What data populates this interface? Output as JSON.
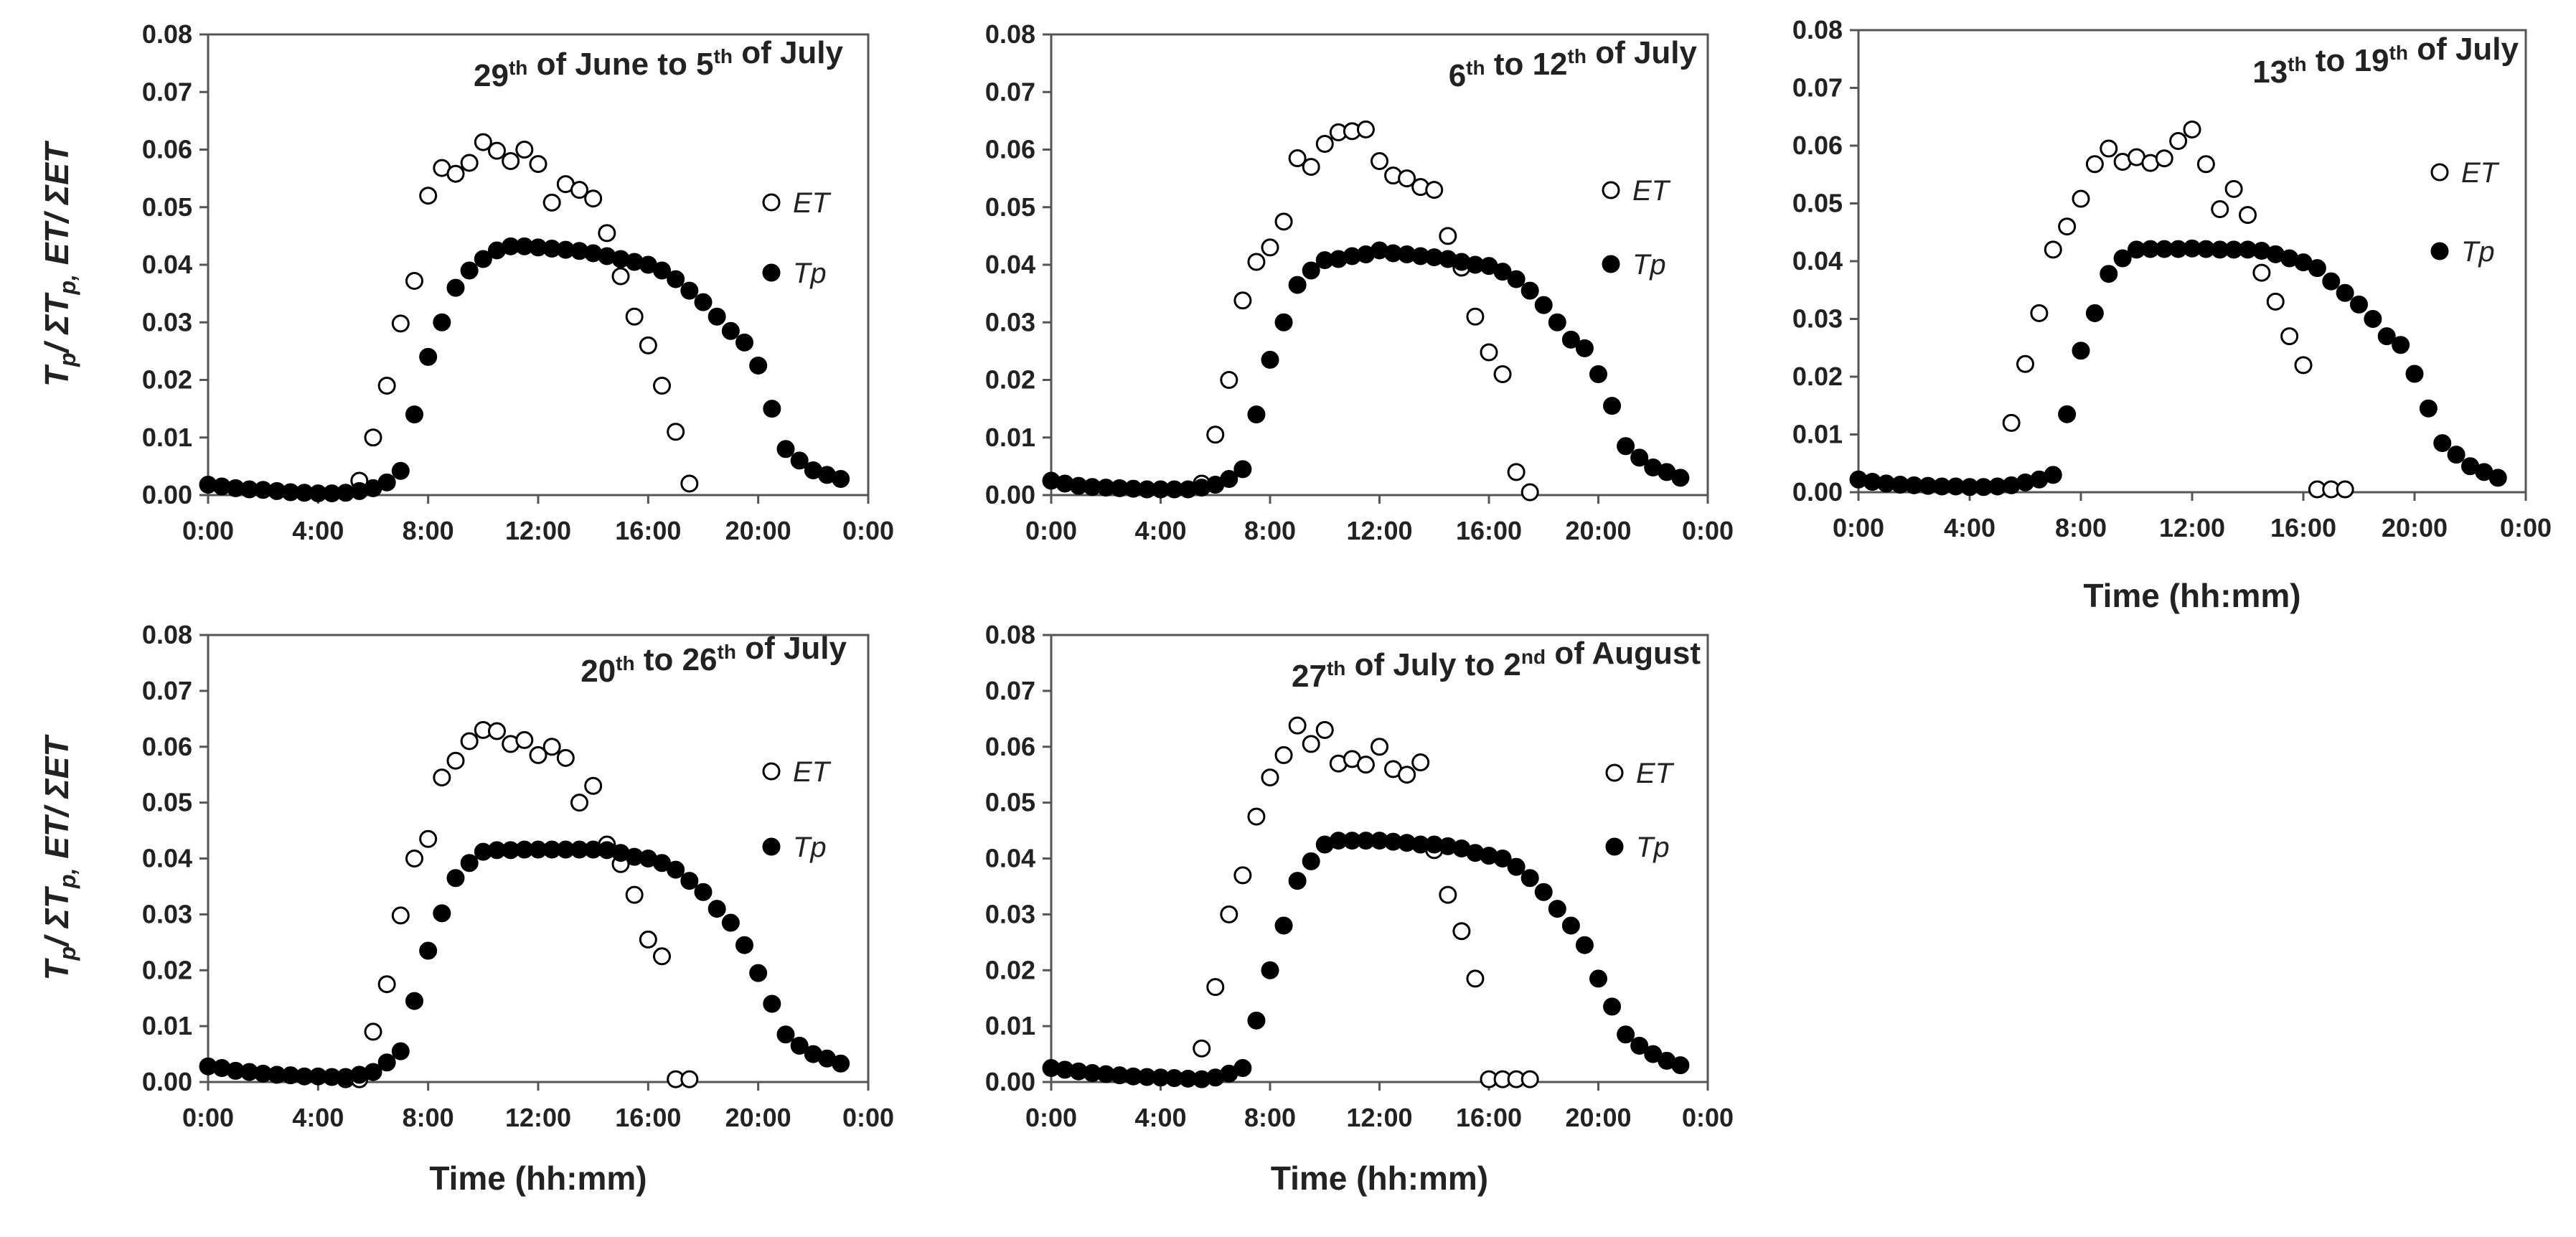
{
  "figure": {
    "ylabel_html": "T<tspan class='sub' dy='10' font-size='32'>p</tspan><tspan dy='-10'>/ ΣT</tspan><tspan dy='10' font-size='32'>p,</tspan><tspan dy='-10'> ET/ ΣET</tspan>",
    "ylabel_text": "Tp/ ΣTp, ET/ ΣET",
    "xlabel": "Time (hh:mm)",
    "xlabel_paren_variant": "Time (hh:mm)"
  },
  "chart_data": [
    {
      "type": "scatter",
      "title_parts": [
        [
          "29",
          "th"
        ],
        [
          " of June to 5",
          "th"
        ],
        [
          " of July",
          ""
        ]
      ],
      "title": "29th of June to 5th of July",
      "xlabel": "",
      "ylabel": "Tp/ ΣTp, ET/ ΣET",
      "xlim": [
        0,
        24
      ],
      "ylim": [
        0,
        0.08
      ],
      "xticks": [
        "0:00",
        "4:00",
        "8:00",
        "12:00",
        "16:00",
        "20:00",
        "0:00"
      ],
      "yticks": [
        "0.00",
        "0.01",
        "0.02",
        "0.03",
        "0.04",
        "0.05",
        "0.06",
        "0.07",
        "0.08"
      ],
      "legend": [
        "ET",
        "Tp"
      ],
      "series": [
        {
          "name": "ET",
          "marker": "open-circle",
          "x": [
            5.5,
            6.0,
            6.5,
            7.0,
            7.5,
            8.0,
            8.5,
            9.0,
            9.5,
            10.0,
            10.5,
            11.0,
            11.5,
            12.0,
            12.5,
            13.0,
            13.5,
            14.0,
            14.5,
            15.0,
            15.5,
            16.0,
            16.5,
            17.0,
            17.5
          ],
          "y": [
            0.0025,
            0.01,
            0.019,
            0.0298,
            0.0372,
            0.052,
            0.0568,
            0.0558,
            0.0577,
            0.0613,
            0.0598,
            0.058,
            0.06,
            0.0575,
            0.0508,
            0.054,
            0.053,
            0.0515,
            0.0455,
            0.038,
            0.031,
            0.026,
            0.019,
            0.011,
            0.002
          ]
        },
        {
          "name": "Tp",
          "marker": "filled-circle",
          "x": [
            0.0,
            0.5,
            1.0,
            1.5,
            2.0,
            2.5,
            3.0,
            3.5,
            4.0,
            4.5,
            5.0,
            5.5,
            6.0,
            6.5,
            7.0,
            7.5,
            8.0,
            8.5,
            9.0,
            9.5,
            10.0,
            10.5,
            11.0,
            11.5,
            12.0,
            12.5,
            13.0,
            13.5,
            14.0,
            14.5,
            15.0,
            15.5,
            16.0,
            16.5,
            17.0,
            17.5,
            18.0,
            18.5,
            19.0,
            19.5,
            20.0,
            20.5,
            21.0,
            21.5,
            22.0,
            22.5,
            23.0
          ],
          "y": [
            0.0018,
            0.0015,
            0.0012,
            0.001,
            0.0009,
            0.0007,
            0.0005,
            0.0004,
            0.0003,
            0.0003,
            0.0004,
            0.0007,
            0.0012,
            0.0022,
            0.0042,
            0.014,
            0.024,
            0.03,
            0.036,
            0.039,
            0.041,
            0.0425,
            0.0432,
            0.0432,
            0.043,
            0.0428,
            0.0426,
            0.0424,
            0.042,
            0.0415,
            0.041,
            0.0405,
            0.04,
            0.039,
            0.0375,
            0.0355,
            0.0335,
            0.031,
            0.0285,
            0.0265,
            0.0225,
            0.015,
            0.008,
            0.006,
            0.0043,
            0.0035,
            0.0028
          ]
        }
      ]
    },
    {
      "type": "scatter",
      "title_parts": [
        [
          "6",
          "th"
        ],
        [
          " to 12",
          "th"
        ],
        [
          " of July",
          ""
        ]
      ],
      "title": "6th to 12th of July",
      "xlabel": "",
      "ylabel": "",
      "xlim": [
        0,
        24
      ],
      "ylim": [
        0,
        0.08
      ],
      "xticks": [
        "0:00",
        "4:00",
        "8:00",
        "12:00",
        "16:00",
        "20:00",
        "0:00"
      ],
      "yticks": [
        "0.00",
        "0.01",
        "0.02",
        "0.03",
        "0.04",
        "0.05",
        "0.06",
        "0.07",
        "0.08"
      ],
      "legend": [
        "ET",
        "Tp"
      ],
      "series": [
        {
          "name": "ET",
          "marker": "open-circle",
          "x": [
            5.5,
            6.0,
            6.5,
            7.0,
            7.5,
            8.0,
            8.5,
            9.0,
            9.5,
            10.0,
            10.5,
            11.0,
            11.5,
            12.0,
            12.5,
            13.0,
            13.5,
            14.0,
            14.5,
            15.0,
            15.5,
            16.0,
            16.5,
            17.0,
            17.5
          ],
          "y": [
            0.002,
            0.0105,
            0.02,
            0.0338,
            0.0405,
            0.043,
            0.0475,
            0.0585,
            0.057,
            0.061,
            0.063,
            0.0632,
            0.0635,
            0.058,
            0.0555,
            0.055,
            0.0535,
            0.053,
            0.045,
            0.0395,
            0.031,
            0.0248,
            0.021,
            0.004,
            0.0005
          ]
        },
        {
          "name": "Tp",
          "marker": "filled-circle",
          "x": [
            0.0,
            0.5,
            1.0,
            1.5,
            2.0,
            2.5,
            3.0,
            3.5,
            4.0,
            4.5,
            5.0,
            5.5,
            6.0,
            6.5,
            7.0,
            7.5,
            8.0,
            8.5,
            9.0,
            9.5,
            10.0,
            10.5,
            11.0,
            11.5,
            12.0,
            12.5,
            13.0,
            13.5,
            14.0,
            14.5,
            15.0,
            15.5,
            16.0,
            16.5,
            17.0,
            17.5,
            18.0,
            18.5,
            19.0,
            19.5,
            20.0,
            20.5,
            21.0,
            21.5,
            22.0,
            22.5,
            23.0
          ],
          "y": [
            0.0025,
            0.002,
            0.0016,
            0.0014,
            0.0013,
            0.0012,
            0.0011,
            0.001,
            0.001,
            0.001,
            0.001,
            0.0013,
            0.0018,
            0.0028,
            0.0045,
            0.014,
            0.0235,
            0.03,
            0.0365,
            0.039,
            0.0408,
            0.041,
            0.0415,
            0.0418,
            0.0425,
            0.042,
            0.0418,
            0.0415,
            0.0413,
            0.041,
            0.0405,
            0.04,
            0.0398,
            0.0388,
            0.0375,
            0.0355,
            0.033,
            0.03,
            0.027,
            0.0255,
            0.021,
            0.0155,
            0.0085,
            0.0065,
            0.0048,
            0.004,
            0.003
          ]
        }
      ]
    },
    {
      "type": "scatter",
      "title_parts": [
        [
          "13",
          "th"
        ],
        [
          " to 19",
          "th"
        ],
        [
          " of July",
          ""
        ]
      ],
      "title": "13th to 19th of July",
      "xlabel": "Time (hh:mm)",
      "ylabel": "",
      "xlim": [
        0,
        24
      ],
      "ylim": [
        0,
        0.08
      ],
      "xticks": [
        "0:00",
        "4:00",
        "8:00",
        "12:00",
        "16:00",
        "20:00",
        "0:00"
      ],
      "yticks": [
        "0.00",
        "0.01",
        "0.02",
        "0.03",
        "0.04",
        "0.05",
        "0.06",
        "0.07",
        "0.08"
      ],
      "legend": [
        "ET",
        "Tp"
      ],
      "series": [
        {
          "name": "ET",
          "marker": "open-circle",
          "x": [
            5.5,
            6.0,
            6.5,
            7.0,
            7.5,
            8.0,
            8.5,
            9.0,
            9.5,
            10.0,
            10.5,
            11.0,
            11.5,
            12.0,
            12.5,
            13.0,
            13.5,
            14.0,
            14.5,
            15.0,
            15.5,
            16.0,
            16.5,
            17.0,
            17.5
          ],
          "y": [
            0.012,
            0.0222,
            0.031,
            0.042,
            0.046,
            0.0508,
            0.0568,
            0.0595,
            0.0572,
            0.058,
            0.057,
            0.0578,
            0.0608,
            0.0628,
            0.0568,
            0.049,
            0.0525,
            0.048,
            0.038,
            0.033,
            0.027,
            0.022,
            0.0005,
            0.0005,
            0.0005
          ]
        },
        {
          "name": "Tp",
          "marker": "filled-circle",
          "x": [
            0.0,
            0.5,
            1.0,
            1.5,
            2.0,
            2.5,
            3.0,
            3.5,
            4.0,
            4.5,
            5.0,
            5.5,
            6.0,
            6.5,
            7.0,
            7.5,
            8.0,
            8.5,
            9.0,
            9.5,
            10.0,
            10.5,
            11.0,
            11.5,
            12.0,
            12.5,
            13.0,
            13.5,
            14.0,
            14.5,
            15.0,
            15.5,
            16.0,
            16.5,
            17.0,
            17.5,
            18.0,
            18.5,
            19.0,
            19.5,
            20.0,
            20.5,
            21.0,
            21.5,
            22.0,
            22.5,
            23.0
          ],
          "y": [
            0.0022,
            0.0018,
            0.0015,
            0.0013,
            0.0012,
            0.0011,
            0.001,
            0.001,
            0.0009,
            0.0009,
            0.001,
            0.0012,
            0.0017,
            0.0022,
            0.003,
            0.0135,
            0.0245,
            0.031,
            0.0378,
            0.0405,
            0.042,
            0.0421,
            0.0421,
            0.0421,
            0.0422,
            0.0421,
            0.042,
            0.042,
            0.042,
            0.0418,
            0.0412,
            0.0405,
            0.0398,
            0.0388,
            0.0365,
            0.0345,
            0.0325,
            0.03,
            0.027,
            0.0255,
            0.0205,
            0.0145,
            0.0085,
            0.0065,
            0.0045,
            0.0035,
            0.0025
          ]
        }
      ]
    },
    {
      "type": "scatter",
      "title_parts": [
        [
          "20",
          "th"
        ],
        [
          " to 26",
          "th"
        ],
        [
          " of July",
          ""
        ]
      ],
      "title": "20th to 26th of July",
      "xlabel": "Time (hh:mm)",
      "ylabel": "Tp/ ΣTp, ET/ ΣET",
      "xlim": [
        0,
        24
      ],
      "ylim": [
        0,
        0.08
      ],
      "xticks": [
        "0:00",
        "4:00",
        "8:00",
        "12:00",
        "16:00",
        "20:00",
        "0:00"
      ],
      "yticks": [
        "0.00",
        "0.01",
        "0.02",
        "0.03",
        "0.04",
        "0.05",
        "0.06",
        "0.07",
        "0.08"
      ],
      "legend": [
        "ET",
        "Tp"
      ],
      "series": [
        {
          "name": "ET",
          "marker": "open-circle",
          "x": [
            5.0,
            5.5,
            6.0,
            6.5,
            7.0,
            7.5,
            8.0,
            8.5,
            9.0,
            9.5,
            10.0,
            10.5,
            11.0,
            11.5,
            12.0,
            12.5,
            13.0,
            13.5,
            14.0,
            14.5,
            15.0,
            15.5,
            16.0,
            16.5,
            17.0,
            17.5
          ],
          "y": [
            0.0005,
            0.0005,
            0.009,
            0.0175,
            0.0298,
            0.04,
            0.0435,
            0.0545,
            0.0575,
            0.061,
            0.063,
            0.0628,
            0.0605,
            0.0612,
            0.0585,
            0.06,
            0.058,
            0.05,
            0.053,
            0.0425,
            0.039,
            0.0335,
            0.0255,
            0.0225,
            0.0005,
            0.0005
          ]
        },
        {
          "name": "Tp",
          "marker": "filled-circle",
          "x": [
            0.0,
            0.5,
            1.0,
            1.5,
            2.0,
            2.5,
            3.0,
            3.5,
            4.0,
            4.5,
            5.0,
            5.5,
            6.0,
            6.5,
            7.0,
            7.5,
            8.0,
            8.5,
            9.0,
            9.5,
            10.0,
            10.5,
            11.0,
            11.5,
            12.0,
            12.5,
            13.0,
            13.5,
            14.0,
            14.5,
            15.0,
            15.5,
            16.0,
            16.5,
            17.0,
            17.5,
            18.0,
            18.5,
            19.0,
            19.5,
            20.0,
            20.5,
            21.0,
            21.5,
            22.0,
            22.5,
            23.0
          ],
          "y": [
            0.0028,
            0.0025,
            0.002,
            0.0018,
            0.0015,
            0.0013,
            0.0012,
            0.001,
            0.001,
            0.0009,
            0.0009,
            0.0013,
            0.0018,
            0.0035,
            0.0055,
            0.0145,
            0.0235,
            0.0302,
            0.0365,
            0.0392,
            0.0412,
            0.0415,
            0.0415,
            0.0416,
            0.0416,
            0.0416,
            0.0416,
            0.0416,
            0.0416,
            0.0415,
            0.041,
            0.0403,
            0.04,
            0.0392,
            0.038,
            0.036,
            0.034,
            0.031,
            0.0285,
            0.0245,
            0.0195,
            0.014,
            0.0085,
            0.0065,
            0.005,
            0.0042,
            0.0033
          ]
        }
      ]
    },
    {
      "type": "scatter",
      "title_parts": [
        [
          "27",
          "th"
        ],
        [
          " of July to 2",
          "nd"
        ],
        [
          " of August",
          ""
        ]
      ],
      "title": "27th of July to 2nd of August",
      "xlabel": "Time (hh:mm)",
      "ylabel": "",
      "xlim": [
        0,
        24
      ],
      "ylim": [
        0,
        0.08
      ],
      "xticks": [
        "0:00",
        "4:00",
        "8:00",
        "12:00",
        "16:00",
        "20:00",
        "0:00"
      ],
      "yticks": [
        "0.00",
        "0.01",
        "0.02",
        "0.03",
        "0.04",
        "0.05",
        "0.06",
        "0.07",
        "0.08"
      ],
      "legend": [
        "ET",
        "Tp"
      ],
      "series": [
        {
          "name": "ET",
          "marker": "open-circle",
          "x": [
            5.5,
            6.0,
            6.5,
            7.0,
            7.5,
            8.0,
            8.5,
            9.0,
            9.5,
            10.0,
            10.5,
            11.0,
            11.5,
            12.0,
            12.5,
            13.0,
            13.5,
            14.0,
            14.5,
            15.0,
            15.5,
            16.0,
            16.5,
            17.0,
            17.5
          ],
          "y": [
            0.006,
            0.017,
            0.03,
            0.037,
            0.0475,
            0.0545,
            0.0585,
            0.0638,
            0.0605,
            0.063,
            0.057,
            0.0578,
            0.0568,
            0.06,
            0.056,
            0.055,
            0.0572,
            0.0415,
            0.0335,
            0.027,
            0.0185,
            0.0005,
            0.0005,
            0.0005,
            0.0005
          ]
        },
        {
          "name": "Tp",
          "marker": "filled-circle",
          "x": [
            0.0,
            0.5,
            1.0,
            1.5,
            2.0,
            2.5,
            3.0,
            3.5,
            4.0,
            4.5,
            5.0,
            5.5,
            6.0,
            6.5,
            7.0,
            7.5,
            8.0,
            8.5,
            9.0,
            9.5,
            10.0,
            10.5,
            11.0,
            11.5,
            12.0,
            12.5,
            13.0,
            13.5,
            14.0,
            14.5,
            15.0,
            15.5,
            16.0,
            16.5,
            17.0,
            17.5,
            18.0,
            18.5,
            19.0,
            19.5,
            20.0,
            20.5,
            21.0,
            21.5,
            22.0,
            22.5,
            23.0
          ],
          "y": [
            0.0025,
            0.0022,
            0.0019,
            0.0016,
            0.0014,
            0.0012,
            0.001,
            0.0009,
            0.0008,
            0.0007,
            0.0006,
            0.0005,
            0.0008,
            0.0015,
            0.0025,
            0.011,
            0.02,
            0.028,
            0.036,
            0.0395,
            0.0425,
            0.0432,
            0.0432,
            0.0432,
            0.0432,
            0.043,
            0.0428,
            0.0425,
            0.0425,
            0.0422,
            0.0418,
            0.041,
            0.0405,
            0.04,
            0.0385,
            0.0365,
            0.034,
            0.031,
            0.028,
            0.0245,
            0.0185,
            0.0135,
            0.0085,
            0.0065,
            0.005,
            0.0038,
            0.003
          ]
        }
      ]
    }
  ]
}
